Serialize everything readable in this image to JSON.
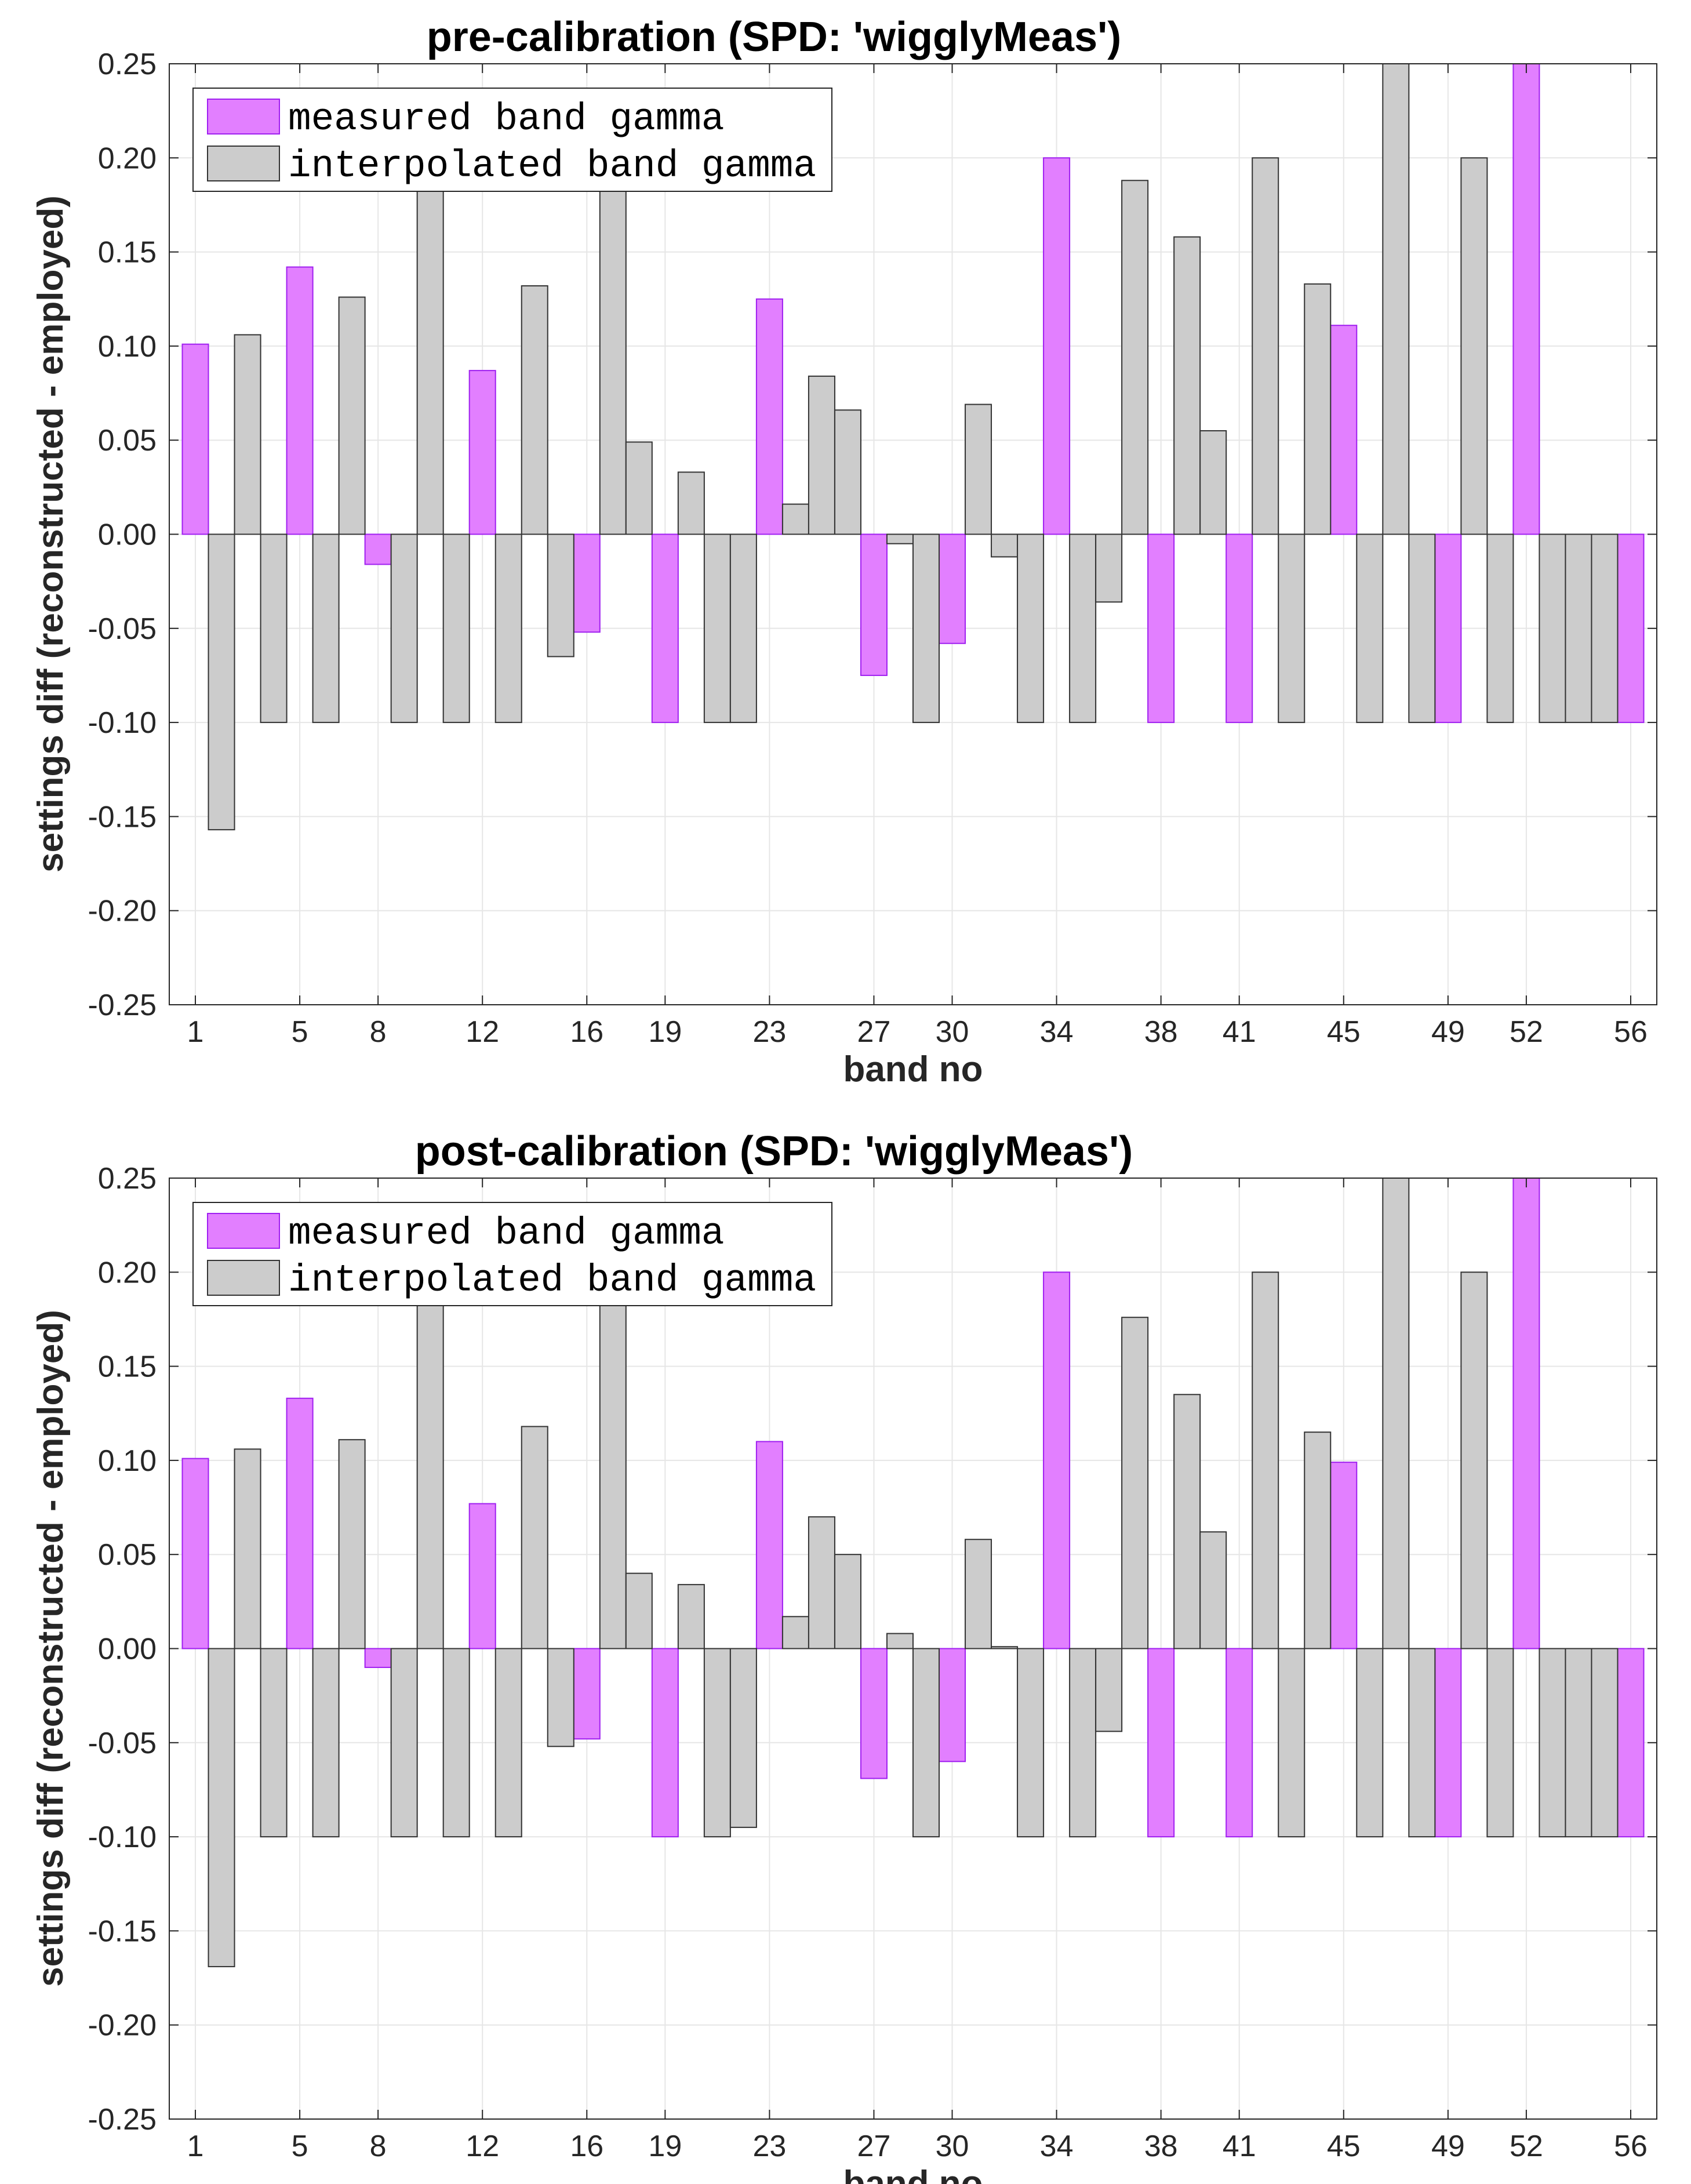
{
  "chart_data": [
    {
      "type": "bar",
      "title": "pre-calibration (SPD: 'wigglyMeas')",
      "xlabel": "band no",
      "ylabel": "settings diff (reconstructed - employed)",
      "ylim": [
        -0.25,
        0.25
      ],
      "yticks": [
        "-0.25",
        "-0.20",
        "-0.15",
        "-0.10",
        "-0.05",
        "0.00",
        "0.05",
        "0.10",
        "0.15",
        "0.20",
        "0.25"
      ],
      "xticks": [
        1,
        5,
        8,
        12,
        16,
        19,
        23,
        27,
        30,
        34,
        38,
        41,
        45,
        49,
        52,
        56
      ],
      "xlim": [
        0,
        57
      ],
      "grid": true,
      "legend_position": "top-left",
      "series": [
        {
          "name": "measured band gamma",
          "color": "#e27fff",
          "edge": "#a020f0",
          "x": [
            1,
            5,
            8,
            12,
            16,
            19,
            23,
            27,
            30,
            34,
            38,
            41,
            45,
            49,
            52,
            56
          ],
          "values": [
            0.101,
            0.142,
            -0.016,
            0.087,
            -0.052,
            -0.1,
            0.125,
            -0.075,
            -0.058,
            0.2,
            -0.1,
            -0.1,
            0.111,
            -0.1,
            0.25,
            -0.1
          ]
        },
        {
          "name": "interpolated band gamma",
          "color": "#cccccc",
          "edge": "#333333",
          "x": [
            2,
            3,
            4,
            6,
            7,
            9,
            10,
            11,
            13,
            14,
            15,
            17,
            18,
            20,
            21,
            22,
            24,
            25,
            26,
            28,
            29,
            31,
            32,
            33,
            35,
            36,
            37,
            39,
            40,
            42,
            43,
            44,
            46,
            47,
            48,
            50,
            51,
            53,
            54,
            55
          ],
          "values": [
            -0.157,
            0.106,
            -0.1,
            -0.1,
            0.126,
            -0.1,
            0.195,
            -0.1,
            -0.1,
            0.132,
            -0.065,
            0.19,
            0.049,
            0.033,
            -0.1,
            -0.1,
            0.016,
            0.084,
            0.066,
            -0.005,
            -0.1,
            0.069,
            -0.012,
            -0.1,
            -0.1,
            -0.036,
            0.188,
            0.158,
            0.055,
            0.2,
            -0.1,
            0.133,
            -0.1,
            0.25,
            -0.1,
            0.2,
            -0.1,
            -0.1,
            -0.1,
            -0.1
          ]
        }
      ]
    },
    {
      "type": "bar",
      "title": "post-calibration (SPD: 'wigglyMeas')",
      "xlabel": "band no",
      "ylabel": "settings diff (reconstructed - employed)",
      "ylim": [
        -0.25,
        0.25
      ],
      "yticks": [
        "-0.25",
        "-0.20",
        "-0.15",
        "-0.10",
        "-0.05",
        "0.00",
        "0.05",
        "0.10",
        "0.15",
        "0.20",
        "0.25"
      ],
      "xticks": [
        1,
        5,
        8,
        12,
        16,
        19,
        23,
        27,
        30,
        34,
        38,
        41,
        45,
        49,
        52,
        56
      ],
      "xlim": [
        0,
        57
      ],
      "grid": true,
      "legend_position": "top-left",
      "series": [
        {
          "name": "measured band gamma",
          "color": "#e27fff",
          "edge": "#a020f0",
          "x": [
            1,
            5,
            8,
            12,
            16,
            19,
            23,
            27,
            30,
            34,
            38,
            41,
            45,
            49,
            52,
            56
          ],
          "values": [
            0.101,
            0.133,
            -0.01,
            0.077,
            -0.048,
            -0.1,
            0.11,
            -0.069,
            -0.06,
            0.2,
            -0.1,
            -0.1,
            0.099,
            -0.1,
            0.25,
            -0.1
          ]
        },
        {
          "name": "interpolated band gamma",
          "color": "#cccccc",
          "edge": "#333333",
          "x": [
            2,
            3,
            4,
            6,
            7,
            9,
            10,
            11,
            13,
            14,
            15,
            17,
            18,
            20,
            21,
            22,
            24,
            25,
            26,
            28,
            29,
            31,
            32,
            33,
            35,
            36,
            37,
            39,
            40,
            42,
            43,
            44,
            46,
            47,
            48,
            50,
            51,
            53,
            54,
            55
          ],
          "values": [
            -0.169,
            0.106,
            -0.1,
            -0.1,
            0.111,
            -0.1,
            0.195,
            -0.1,
            -0.1,
            0.118,
            -0.052,
            0.19,
            0.04,
            0.034,
            -0.1,
            -0.095,
            0.017,
            0.07,
            0.05,
            0.008,
            -0.1,
            0.058,
            0.001,
            -0.1,
            -0.1,
            -0.044,
            0.176,
            0.135,
            0.062,
            0.2,
            -0.1,
            0.115,
            -0.1,
            0.25,
            -0.1,
            0.2,
            -0.1,
            -0.1,
            -0.1,
            -0.1
          ]
        }
      ]
    }
  ]
}
